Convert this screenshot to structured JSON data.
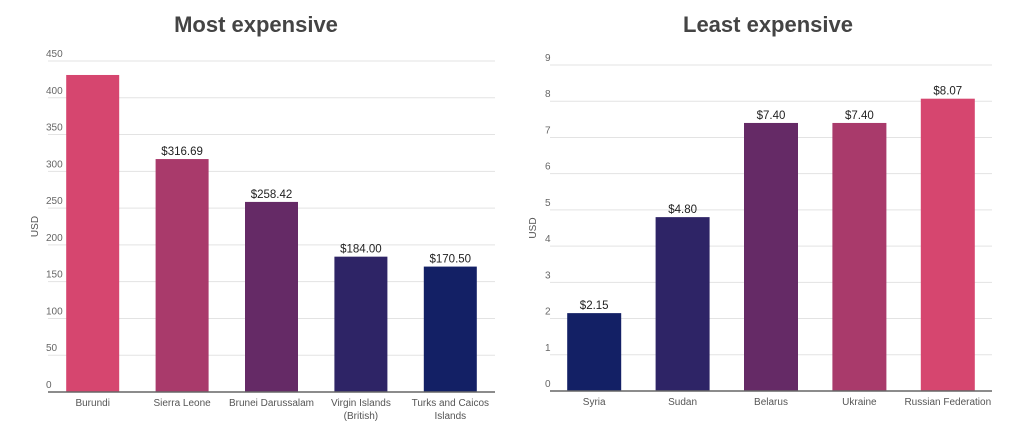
{
  "chart_data": [
    {
      "type": "bar",
      "title": "Most expensive",
      "xlabel": "",
      "ylabel": "USD",
      "ylim": [
        0,
        450
      ],
      "yticks": [
        0,
        50,
        100,
        150,
        200,
        250,
        300,
        350,
        400,
        450
      ],
      "grid": true,
      "categories": [
        "Burundi",
        "Sierra Leone",
        "Brunei Darussalam",
        "Virgin Islands (British)",
        "Turks and Caicos Islands"
      ],
      "category_lines": [
        [
          "Burundi"
        ],
        [
          "Sierra Leone"
        ],
        [
          "Brunei Darussalam"
        ],
        [
          "Virgin Islands",
          "(British)"
        ],
        [
          "Turks and Caicos",
          "Islands"
        ]
      ],
      "values": [
        431,
        316.69,
        258.42,
        184.0,
        170.5
      ],
      "data_labels": [
        "",
        "$316.69",
        "$258.42",
        "$184.00",
        "$170.50"
      ],
      "colors": [
        "#d6466f",
        "#a93a6b",
        "#652a66",
        "#2e2466",
        "#132065"
      ]
    },
    {
      "type": "bar",
      "title": "Least expensive",
      "xlabel": "",
      "ylabel": "USD",
      "ylim": [
        0,
        9
      ],
      "yticks": [
        0,
        1,
        2,
        3,
        4,
        5,
        6,
        7,
        8,
        9
      ],
      "grid": true,
      "categories": [
        "Syria",
        "Sudan",
        "Belarus",
        "Ukraine",
        "Russian Federation"
      ],
      "category_lines": [
        [
          "Syria"
        ],
        [
          "Sudan"
        ],
        [
          "Belarus"
        ],
        [
          "Ukraine"
        ],
        [
          "Russian Federation"
        ]
      ],
      "values": [
        2.15,
        4.8,
        7.4,
        7.4,
        8.07
      ],
      "data_labels": [
        "$2.15",
        "$4.80",
        "$7.40",
        "$7.40",
        "$8.07"
      ],
      "colors": [
        "#132065",
        "#2e2466",
        "#652a66",
        "#a93a6b",
        "#d6466f"
      ]
    }
  ]
}
